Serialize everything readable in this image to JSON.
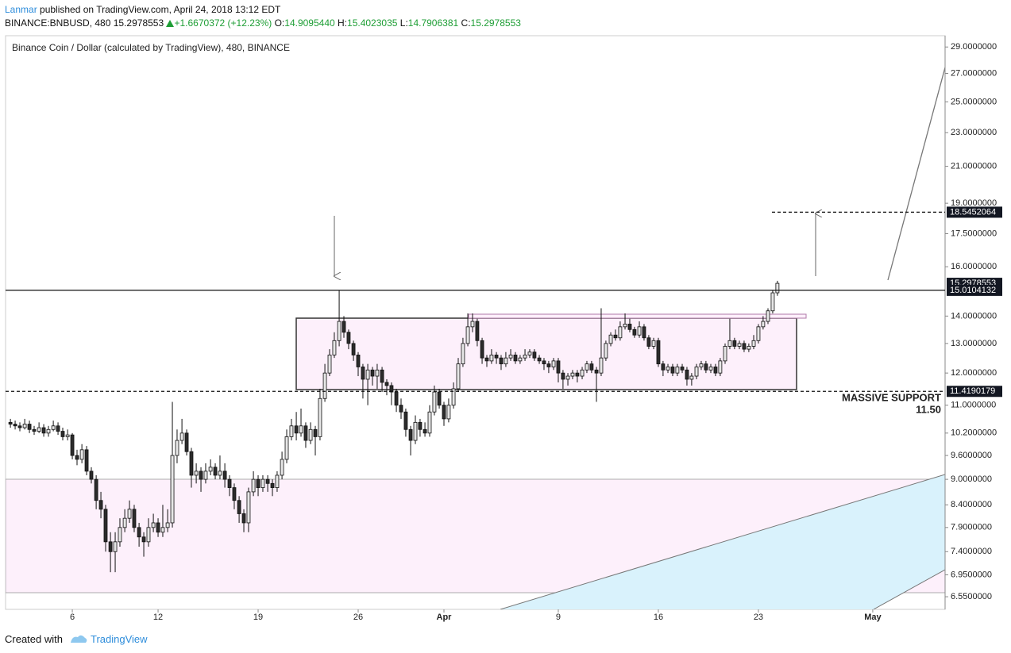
{
  "header": {
    "author": "Lanmar",
    "published": "published on TradingView.com, April 24, 2018 13:12 EDT",
    "symbol": "BINANCE:BNBUSD, 480",
    "last": "15.2978553",
    "change": "+1.6670372 (+12.23%)",
    "o_label": "O:",
    "o": "14.9095440",
    "h_label": "H:",
    "h": "15.4023035",
    "l_label": "L:",
    "l": "14.7906381",
    "c_label": "C:",
    "c": "15.2978553"
  },
  "chart_data": {
    "type": "candlestick",
    "title": "Binance Coin / Dollar (calculated by TradingView), 480, BINANCE",
    "log_scale": true,
    "up_color": "#e6e6e6",
    "down_color": "#2b2b2b",
    "xlim": [
      1.33,
      67.06
    ],
    "ylim": [
      6.33,
      29.9
    ],
    "xticks": [
      6,
      12,
      19,
      26,
      {
        "value": 32,
        "label": "Apr"
      },
      {
        "value": 40,
        "label": "9"
      },
      {
        "value": 47,
        "label": "16"
      },
      {
        "value": 54,
        "label": "23"
      },
      {
        "value": 62,
        "label": "May"
      }
    ],
    "yticks": [
      {
        "value": 29,
        "label": "29.0000000"
      },
      {
        "value": 27,
        "label": "27.0000000"
      },
      {
        "value": 25,
        "label": "25.0000000"
      },
      {
        "value": 23,
        "label": "23.0000000"
      },
      {
        "value": 21,
        "label": "21.0000000"
      },
      {
        "value": 19,
        "label": "19.0000000"
      },
      {
        "value": 17.5,
        "label": "17.5000000"
      },
      {
        "value": 16,
        "label": "16.0000000"
      },
      {
        "value": 14,
        "label": "14.0000000"
      },
      {
        "value": 13,
        "label": "13.0000000"
      },
      {
        "value": 12,
        "label": "12.0000000"
      },
      {
        "value": 11,
        "label": "11.0000000"
      },
      {
        "value": 10.2,
        "label": "10.2000000"
      },
      {
        "value": 9.6,
        "label": "9.6000000"
      },
      {
        "value": 9,
        "label": "9.0000000"
      },
      {
        "value": 8.4,
        "label": "8.4000000"
      },
      {
        "value": 7.9,
        "label": "7.9000000"
      },
      {
        "value": 7.4,
        "label": "7.4000000"
      },
      {
        "value": 6.95,
        "label": "6.9500000"
      },
      {
        "value": 6.55,
        "label": "6.5500000"
      }
    ],
    "levels": [
      {
        "value": 18.5452064,
        "label": "18.5452064",
        "style": "dashed"
      },
      {
        "value": 15.2978553,
        "label": "15.2978553",
        "style": "none"
      },
      {
        "value": 15.0104132,
        "label": "15.0104132",
        "style": "solid"
      },
      {
        "value": 11.4190179,
        "label": "11.4190179",
        "style": "dashed"
      }
    ],
    "annotations": [
      "MASSIVE SUPPORT",
      "11.50"
    ],
    "x": [
      1.67,
      2,
      2.33,
      2.67,
      3,
      3.33,
      3.67,
      4,
      4.33,
      4.67,
      5,
      5.33,
      5.67,
      6,
      6.33,
      6.67,
      7,
      7.33,
      7.67,
      8,
      8.33,
      8.67,
      9,
      9.33,
      9.67,
      10,
      10.33,
      10.67,
      11,
      11.33,
      11.67,
      12,
      12.33,
      12.67,
      13,
      13.33,
      13.67,
      14,
      14.33,
      14.67,
      15,
      15.33,
      15.67,
      16,
      16.33,
      16.67,
      17,
      17.33,
      17.67,
      18,
      18.33,
      18.67,
      19,
      19.33,
      19.67,
      20,
      20.33,
      20.67,
      21,
      21.33,
      21.67,
      22,
      22.33,
      22.67,
      23,
      23.33,
      23.67,
      24,
      24.33,
      24.67,
      25,
      25.33,
      25.67,
      26,
      26.33,
      26.67,
      27,
      27.33,
      27.67,
      28,
      28.33,
      28.67,
      29,
      29.33,
      29.67,
      30,
      30.33,
      30.67,
      31,
      31.33,
      31.67,
      32,
      32.33,
      32.67,
      33,
      33.33,
      33.67,
      34,
      34.33,
      34.67,
      35,
      35.33,
      35.67,
      36,
      36.33,
      36.67,
      37,
      37.33,
      37.67,
      38,
      38.33,
      38.67,
      39,
      39.33,
      39.67,
      40,
      40.33,
      40.67,
      41,
      41.33,
      41.67,
      42,
      42.33,
      42.67,
      43,
      43.33,
      43.67,
      44,
      44.33,
      44.67,
      45,
      45.33,
      45.67,
      46,
      46.33,
      46.67,
      47,
      47.33,
      47.67,
      48,
      48.33,
      48.67,
      49,
      49.33,
      49.67,
      50,
      50.33,
      50.67,
      51,
      51.33,
      51.67,
      52,
      52.33,
      52.67,
      53,
      53.33,
      53.67,
      54,
      54.33,
      54.67,
      55,
      55.33
    ],
    "candles": [
      [
        10.5,
        10.6,
        10.35,
        10.45
      ],
      [
        10.45,
        10.55,
        10.3,
        10.4
      ],
      [
        10.4,
        10.5,
        10.25,
        10.35
      ],
      [
        10.35,
        10.6,
        10.3,
        10.45
      ],
      [
        10.45,
        10.55,
        10.2,
        10.3
      ],
      [
        10.3,
        10.4,
        10.15,
        10.25
      ],
      [
        10.25,
        10.5,
        10.2,
        10.35
      ],
      [
        10.35,
        10.45,
        10.1,
        10.2
      ],
      [
        10.2,
        10.4,
        10.1,
        10.3
      ],
      [
        10.3,
        10.55,
        10.25,
        10.4
      ],
      [
        10.4,
        10.5,
        10.15,
        10.25
      ],
      [
        10.25,
        10.35,
        10.0,
        10.1
      ],
      [
        10.1,
        10.3,
        10.0,
        10.15
      ],
      [
        10.15,
        10.2,
        9.5,
        9.6
      ],
      [
        9.6,
        9.75,
        9.35,
        9.5
      ],
      [
        9.5,
        9.9,
        9.4,
        9.75
      ],
      [
        9.75,
        9.85,
        9.1,
        9.2
      ],
      [
        9.2,
        9.3,
        8.9,
        9.0
      ],
      [
        9.0,
        9.1,
        8.3,
        8.5
      ],
      [
        8.5,
        8.7,
        8.1,
        8.3
      ],
      [
        8.3,
        8.4,
        7.4,
        7.6
      ],
      [
        7.6,
        7.8,
        7.0,
        7.4
      ],
      [
        7.4,
        7.8,
        7.0,
        7.6
      ],
      [
        7.6,
        8.1,
        7.5,
        7.9
      ],
      [
        7.9,
        8.3,
        7.8,
        8.1
      ],
      [
        8.1,
        8.5,
        8.0,
        8.3
      ],
      [
        8.3,
        8.4,
        7.8,
        7.9
      ],
      [
        7.9,
        8.0,
        7.5,
        7.7
      ],
      [
        7.7,
        7.8,
        7.3,
        7.6
      ],
      [
        7.6,
        8.1,
        7.5,
        7.9
      ],
      [
        7.9,
        8.2,
        7.8,
        8.0
      ],
      [
        8.0,
        8.1,
        7.7,
        7.8
      ],
      [
        7.8,
        8.4,
        7.7,
        7.9
      ],
      [
        7.9,
        8.3,
        7.8,
        8.0
      ],
      [
        8.0,
        11.1,
        7.9,
        9.6
      ],
      [
        9.6,
        10.3,
        9.4,
        10.0
      ],
      [
        10.0,
        10.6,
        9.9,
        10.2
      ],
      [
        10.2,
        10.3,
        9.6,
        9.7
      ],
      [
        9.7,
        9.8,
        8.8,
        9.1
      ],
      [
        9.1,
        9.4,
        8.9,
        9.2
      ],
      [
        9.2,
        9.3,
        8.7,
        9.0
      ],
      [
        9.0,
        9.4,
        8.9,
        9.2
      ],
      [
        9.2,
        9.5,
        9.1,
        9.3
      ],
      [
        9.3,
        9.4,
        9.0,
        9.1
      ],
      [
        9.1,
        9.6,
        9.0,
        9.2
      ],
      [
        9.2,
        9.4,
        8.8,
        9.0
      ],
      [
        9.0,
        9.1,
        8.6,
        8.8
      ],
      [
        8.8,
        8.9,
        8.3,
        8.5
      ],
      [
        8.5,
        8.6,
        8.0,
        8.2
      ],
      [
        8.2,
        8.3,
        7.8,
        8.0
      ],
      [
        8.0,
        8.8,
        7.8,
        8.7
      ],
      [
        8.7,
        9.2,
        8.6,
        9.0
      ],
      [
        9.0,
        9.1,
        8.6,
        8.8
      ],
      [
        8.8,
        9.1,
        8.7,
        9.0
      ],
      [
        9.0,
        9.1,
        8.7,
        8.9
      ],
      [
        8.9,
        9.0,
        8.6,
        8.8
      ],
      [
        8.8,
        9.2,
        8.7,
        9.1
      ],
      [
        9.1,
        9.7,
        9.0,
        9.5
      ],
      [
        9.5,
        10.3,
        9.4,
        10.1
      ],
      [
        10.1,
        10.6,
        10.0,
        10.4
      ],
      [
        10.4,
        10.8,
        10.0,
        10.2
      ],
      [
        10.2,
        10.9,
        10.1,
        10.4
      ],
      [
        10.4,
        10.5,
        9.8,
        10.0
      ],
      [
        10.0,
        10.5,
        9.9,
        10.3
      ],
      [
        10.3,
        10.4,
        9.6,
        10.1
      ],
      [
        10.1,
        11.5,
        10.0,
        11.2
      ],
      [
        11.2,
        12.3,
        11.1,
        12.0
      ],
      [
        12.0,
        12.8,
        11.9,
        12.6
      ],
      [
        12.6,
        13.4,
        12.5,
        13.1
      ],
      [
        13.1,
        15.0,
        12.9,
        13.8
      ],
      [
        13.8,
        14.0,
        13.2,
        13.4
      ],
      [
        13.4,
        13.5,
        12.8,
        13.0
      ],
      [
        13.0,
        13.1,
        12.4,
        12.6
      ],
      [
        12.6,
        12.7,
        11.9,
        12.2
      ],
      [
        12.2,
        12.3,
        11.2,
        11.8
      ],
      [
        11.8,
        12.3,
        11.0,
        12.1
      ],
      [
        12.1,
        12.2,
        11.6,
        11.9
      ],
      [
        11.9,
        12.3,
        11.5,
        12.1
      ],
      [
        12.1,
        12.2,
        11.4,
        11.7
      ],
      [
        11.7,
        11.8,
        11.3,
        11.6
      ],
      [
        11.6,
        11.7,
        11.0,
        11.4
      ],
      [
        11.4,
        11.5,
        10.8,
        11.0
      ],
      [
        11.0,
        11.2,
        10.6,
        10.8
      ],
      [
        10.8,
        10.9,
        10.1,
        10.3
      ],
      [
        10.3,
        10.4,
        9.6,
        10.0
      ],
      [
        10.0,
        10.7,
        9.9,
        10.5
      ],
      [
        10.5,
        10.6,
        10.1,
        10.3
      ],
      [
        10.3,
        10.5,
        10.1,
        10.2
      ],
      [
        10.2,
        11.0,
        10.1,
        10.8
      ],
      [
        10.8,
        11.6,
        10.7,
        11.4
      ],
      [
        11.4,
        11.5,
        10.9,
        11.0
      ],
      [
        11.0,
        11.1,
        10.4,
        10.6
      ],
      [
        10.6,
        11.2,
        10.5,
        11.0
      ],
      [
        11.0,
        11.7,
        10.9,
        11.5
      ],
      [
        11.5,
        12.5,
        11.4,
        12.3
      ],
      [
        12.3,
        13.2,
        12.2,
        13.0
      ],
      [
        13.0,
        14.1,
        12.9,
        13.6
      ],
      [
        13.6,
        14.1,
        13.4,
        13.8
      ],
      [
        13.8,
        13.9,
        12.9,
        13.1
      ],
      [
        13.1,
        13.2,
        12.3,
        12.5
      ],
      [
        12.5,
        12.6,
        12.2,
        12.4
      ],
      [
        12.4,
        12.8,
        12.3,
        12.6
      ],
      [
        12.6,
        12.7,
        12.3,
        12.5
      ],
      [
        12.5,
        12.6,
        12.1,
        12.3
      ],
      [
        12.3,
        12.7,
        12.2,
        12.5
      ],
      [
        12.5,
        12.8,
        12.4,
        12.6
      ],
      [
        12.6,
        12.7,
        12.3,
        12.4
      ],
      [
        12.4,
        12.6,
        12.3,
        12.5
      ],
      [
        12.5,
        12.8,
        12.4,
        12.6
      ],
      [
        12.6,
        12.8,
        12.5,
        12.7
      ],
      [
        12.7,
        12.8,
        12.4,
        12.5
      ],
      [
        12.5,
        12.6,
        12.3,
        12.4
      ],
      [
        12.4,
        12.5,
        12.1,
        12.3
      ],
      [
        12.3,
        12.4,
        12.0,
        12.2
      ],
      [
        12.2,
        12.5,
        12.1,
        12.4
      ],
      [
        12.4,
        12.5,
        11.7,
        12.0
      ],
      [
        12.0,
        12.1,
        11.5,
        11.8
      ],
      [
        11.8,
        12.0,
        11.6,
        11.9
      ],
      [
        11.9,
        12.1,
        11.8,
        12.0
      ],
      [
        12.0,
        12.1,
        11.7,
        11.9
      ],
      [
        11.9,
        12.2,
        11.8,
        12.1
      ],
      [
        12.1,
        12.4,
        12.0,
        12.3
      ],
      [
        12.3,
        12.4,
        12.0,
        12.1
      ],
      [
        12.1,
        12.2,
        11.1,
        12.0
      ],
      [
        12.0,
        14.3,
        11.9,
        12.5
      ],
      [
        12.5,
        13.1,
        12.4,
        13.0
      ],
      [
        13.0,
        13.4,
        12.9,
        13.3
      ],
      [
        13.3,
        13.5,
        13.1,
        13.2
      ],
      [
        13.2,
        13.8,
        13.1,
        13.6
      ],
      [
        13.6,
        14.1,
        13.5,
        13.7
      ],
      [
        13.7,
        13.9,
        13.4,
        13.5
      ],
      [
        13.5,
        13.6,
        13.2,
        13.3
      ],
      [
        13.3,
        13.8,
        13.2,
        13.6
      ],
      [
        13.6,
        13.7,
        13.1,
        13.2
      ],
      [
        13.2,
        13.3,
        12.8,
        12.9
      ],
      [
        12.9,
        13.2,
        12.8,
        13.1
      ],
      [
        13.1,
        13.2,
        12.2,
        12.3
      ],
      [
        12.3,
        12.4,
        11.9,
        12.1
      ],
      [
        12.1,
        12.3,
        12.0,
        12.2
      ],
      [
        12.2,
        12.3,
        11.9,
        12.0
      ],
      [
        12.0,
        12.3,
        11.9,
        12.2
      ],
      [
        12.2,
        12.3,
        12.0,
        12.1
      ],
      [
        12.1,
        12.2,
        11.6,
        11.8
      ],
      [
        11.8,
        12.0,
        11.6,
        11.9
      ],
      [
        11.9,
        12.3,
        11.8,
        12.2
      ],
      [
        12.2,
        12.4,
        12.1,
        12.3
      ],
      [
        12.3,
        12.4,
        12.0,
        12.1
      ],
      [
        12.1,
        12.3,
        12.0,
        12.2
      ],
      [
        12.2,
        12.3,
        11.9,
        12.0
      ],
      [
        12.0,
        12.5,
        11.9,
        12.4
      ],
      [
        12.4,
        13.0,
        12.3,
        12.9
      ],
      [
        12.9,
        13.9,
        12.8,
        13.1
      ],
      [
        13.1,
        13.2,
        12.8,
        12.9
      ],
      [
        12.9,
        13.1,
        12.8,
        13.0
      ],
      [
        13.0,
        13.1,
        12.7,
        12.8
      ],
      [
        12.8,
        13.0,
        12.7,
        12.9
      ],
      [
        12.9,
        13.3,
        12.8,
        13.1
      ],
      [
        13.1,
        13.7,
        13.0,
        13.6
      ],
      [
        13.6,
        14.0,
        13.5,
        13.8
      ],
      [
        13.8,
        14.3,
        13.7,
        14.2
      ],
      [
        14.2,
        15.0,
        14.1,
        14.909544
      ],
      [
        14.909544,
        15.4023035,
        14.7906381,
        15.2978553
      ]
    ]
  },
  "footer": {
    "created": "Created with",
    "brand": "TradingView"
  }
}
